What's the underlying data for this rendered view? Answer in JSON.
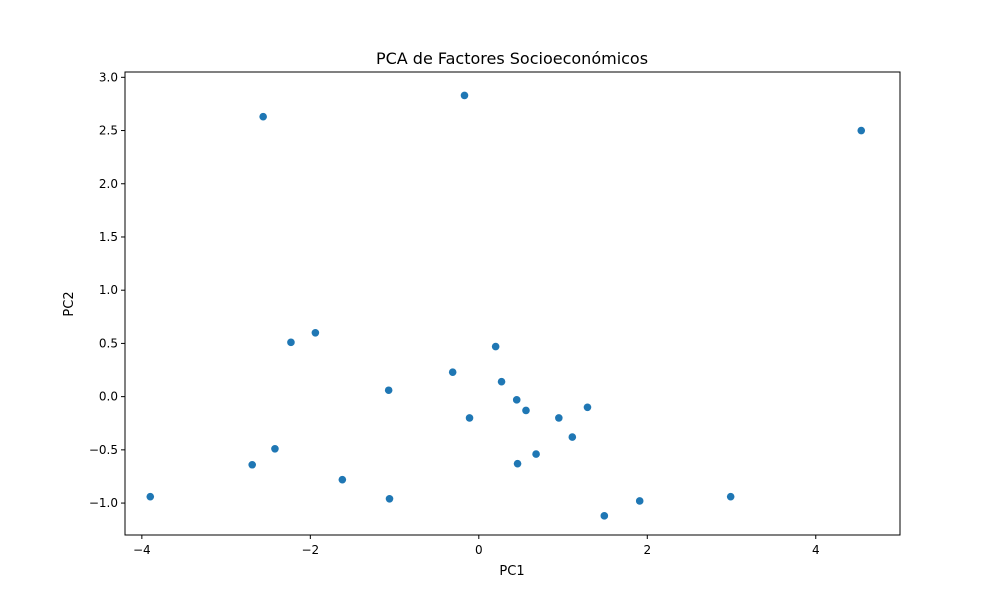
{
  "chart_data": {
    "type": "scatter",
    "title": "PCA de Factores Socioeconómicos",
    "xlabel": "PC1",
    "ylabel": "PC2",
    "xlim": [
      -4.2,
      5.0
    ],
    "ylim": [
      -1.3,
      3.05
    ],
    "xticks": [
      -4,
      -2,
      0,
      2,
      4
    ],
    "yticks": [
      -1.0,
      -0.5,
      0.0,
      0.5,
      1.0,
      1.5,
      2.0,
      2.5,
      3.0
    ],
    "xtick_labels": [
      "−4",
      "−2",
      "0",
      "2",
      "4"
    ],
    "ytick_labels": [
      "−1.0",
      "−0.5",
      "0.0",
      "0.5",
      "1.0",
      "1.5",
      "2.0",
      "2.5",
      "3.0"
    ],
    "color": "#1f77b4",
    "grid": false,
    "points": [
      {
        "x": -3.9,
        "y": -0.94
      },
      {
        "x": -2.69,
        "y": -0.64
      },
      {
        "x": -2.56,
        "y": 2.63
      },
      {
        "x": -2.42,
        "y": -0.49
      },
      {
        "x": -2.23,
        "y": 0.51
      },
      {
        "x": -1.94,
        "y": 0.6
      },
      {
        "x": -1.62,
        "y": -0.78
      },
      {
        "x": -1.07,
        "y": 0.06
      },
      {
        "x": -1.06,
        "y": -0.96
      },
      {
        "x": -0.31,
        "y": 0.23
      },
      {
        "x": -0.17,
        "y": 2.83
      },
      {
        "x": -0.11,
        "y": -0.2
      },
      {
        "x": 0.2,
        "y": 0.47
      },
      {
        "x": 0.27,
        "y": 0.14
      },
      {
        "x": 0.45,
        "y": -0.03
      },
      {
        "x": 0.46,
        "y": -0.63
      },
      {
        "x": 0.56,
        "y": -0.13
      },
      {
        "x": 0.68,
        "y": -0.54
      },
      {
        "x": 0.95,
        "y": -0.2
      },
      {
        "x": 1.11,
        "y": -0.38
      },
      {
        "x": 1.29,
        "y": -0.1
      },
      {
        "x": 1.49,
        "y": -1.12
      },
      {
        "x": 1.91,
        "y": -0.98
      },
      {
        "x": 2.99,
        "y": -0.94
      },
      {
        "x": 4.54,
        "y": 2.5
      }
    ]
  }
}
